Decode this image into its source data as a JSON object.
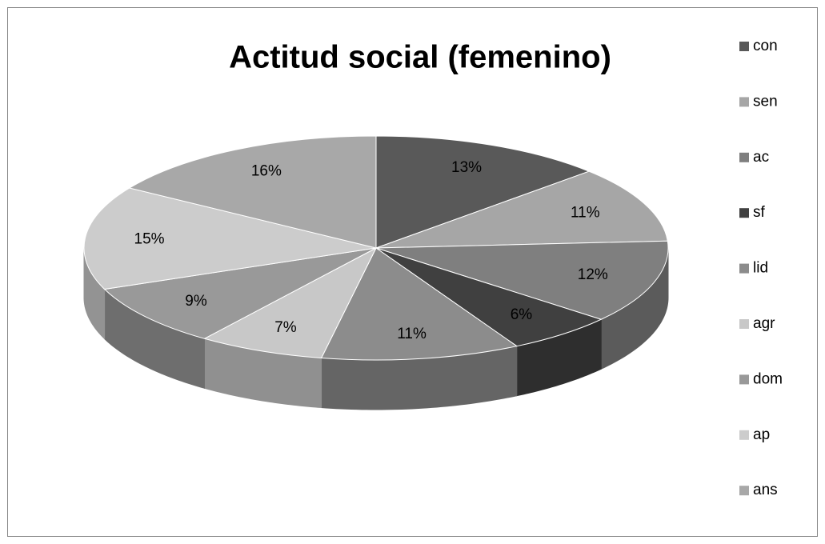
{
  "chart_data": {
    "type": "pie",
    "title": "Actitud social  (femenino)",
    "categories": [
      "con",
      "sen",
      "ac",
      "sf",
      "lid",
      "agr",
      "dom",
      "ap",
      "ans"
    ],
    "values": [
      13,
      11,
      12,
      6,
      11,
      7,
      9,
      15,
      16
    ],
    "value_labels": [
      "13%",
      "11%",
      "12%",
      "6%",
      "11%",
      "7%",
      "9%",
      "15%",
      "16%"
    ],
    "colors": [
      "#595959",
      "#a6a6a6",
      "#7f7f7f",
      "#404040",
      "#8c8c8c",
      "#c8c8c8",
      "#999999",
      "#cccccc",
      "#a8a8a8"
    ],
    "legend": "right"
  }
}
